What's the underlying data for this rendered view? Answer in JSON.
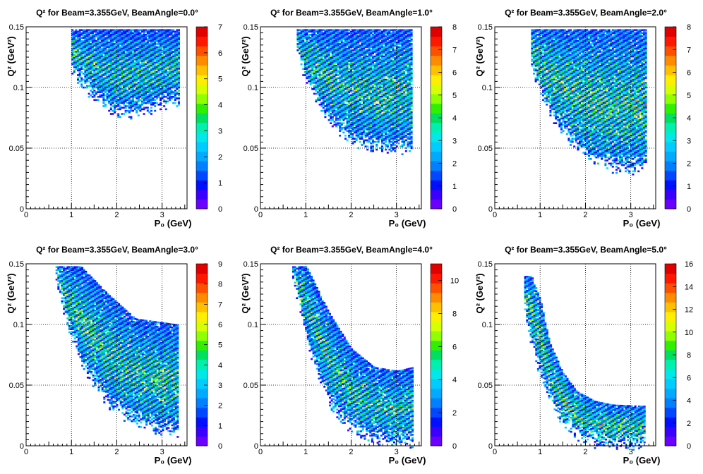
{
  "chart_data": [
    {
      "type": "heatmap",
      "title": "Q² for Beam=3.355GeV, BeamAngle=0.0°",
      "xlabel": "P₀ (GeV)",
      "ylabel": "Q² (GeV²)",
      "xlim": [
        0,
        3.55
      ],
      "ylim": [
        0,
        0.15
      ],
      "x_ticks": [
        "0",
        "1",
        "2",
        "3"
      ],
      "y_ticks": [
        "0",
        "0.05",
        "0.1",
        "0.15"
      ],
      "z_range": [
        0,
        7
      ],
      "z_ticks": [
        "0",
        "1",
        "2",
        "3",
        "4",
        "5",
        "6",
        "7"
      ],
      "grid": true,
      "colorbar": "right",
      "region": {
        "x_min": 1.0,
        "x_max": 3.35,
        "y_max": 0.148,
        "lower_edge_x": [
          1.0,
          1.3,
          1.6,
          2.0,
          2.4,
          2.8,
          3.35
        ],
        "lower_edge_y": [
          0.115,
          0.1,
          0.09,
          0.078,
          0.08,
          0.085,
          0.09
        ],
        "peak_z": 5.5
      }
    },
    {
      "type": "heatmap",
      "title": "Q² for Beam=3.355GeV, BeamAngle=1.0°",
      "xlabel": "P₀ (GeV)",
      "ylabel": "Q² (GeV²)",
      "xlim": [
        0,
        3.55
      ],
      "ylim": [
        0,
        0.15
      ],
      "x_ticks": [
        "0",
        "1",
        "2",
        "3"
      ],
      "y_ticks": [
        "0",
        "0.05",
        "0.1",
        "0.15"
      ],
      "z_range": [
        0,
        8
      ],
      "z_ticks": [
        "0",
        "1",
        "2",
        "3",
        "4",
        "5",
        "6",
        "7",
        "8"
      ],
      "grid": true,
      "colorbar": "right",
      "region": {
        "x_min": 0.8,
        "x_max": 3.35,
        "y_max": 0.148,
        "lower_edge_x": [
          0.8,
          1.0,
          1.3,
          1.6,
          2.0,
          2.4,
          2.8,
          3.35
        ],
        "lower_edge_y": [
          0.13,
          0.105,
          0.085,
          0.07,
          0.058,
          0.052,
          0.05,
          0.052
        ],
        "peak_z": 6.5
      }
    },
    {
      "type": "heatmap",
      "title": "Q² for Beam=3.355GeV, BeamAngle=2.0°",
      "xlabel": "P₀ (GeV)",
      "ylabel": "Q² (GeV²)",
      "xlim": [
        0,
        3.55
      ],
      "ylim": [
        0,
        0.15
      ],
      "x_ticks": [
        "0",
        "1",
        "2",
        "3"
      ],
      "y_ticks": [
        "0",
        "0.05",
        "0.1",
        "0.15"
      ],
      "z_range": [
        0,
        8
      ],
      "z_ticks": [
        "0",
        "1",
        "2",
        "3",
        "4",
        "5",
        "6",
        "7",
        "8"
      ],
      "grid": true,
      "colorbar": "right",
      "region": {
        "x_min": 0.8,
        "x_max": 3.35,
        "y_max": 0.148,
        "lower_edge_x": [
          0.8,
          1.0,
          1.3,
          1.6,
          2.0,
          2.4,
          2.8,
          3.35
        ],
        "lower_edge_y": [
          0.12,
          0.095,
          0.075,
          0.06,
          0.045,
          0.037,
          0.033,
          0.035
        ],
        "peak_z": 7.0
      }
    },
    {
      "type": "heatmap",
      "title": "Q² for Beam=3.355GeV, BeamAngle=3.0°",
      "xlabel": "P₀ (GeV)",
      "ylabel": "Q² (GeV²)",
      "xlim": [
        0,
        3.55
      ],
      "ylim": [
        0,
        0.15
      ],
      "x_ticks": [
        "0",
        "1",
        "2",
        "3"
      ],
      "y_ticks": [
        "0",
        "0.05",
        "0.1",
        "0.15"
      ],
      "z_range": [
        0,
        9
      ],
      "z_ticks": [
        "0",
        "1",
        "2",
        "3",
        "4",
        "5",
        "6",
        "7",
        "8",
        "9"
      ],
      "grid": true,
      "colorbar": "right",
      "region": {
        "x_min": 0.65,
        "x_max": 3.35,
        "y_max": 0.148,
        "lower_edge_x": [
          0.65,
          0.9,
          1.2,
          1.5,
          1.8,
          2.2,
          2.6,
          3.0,
          3.35
        ],
        "lower_edge_y": [
          0.14,
          0.1,
          0.07,
          0.05,
          0.035,
          0.025,
          0.018,
          0.013,
          0.012
        ],
        "upper_edge_x": [
          0.65,
          1.2,
          1.8,
          2.4,
          3.35
        ],
        "upper_edge_y": [
          0.148,
          0.148,
          0.125,
          0.105,
          0.1
        ],
        "peak_z": 7.5
      }
    },
    {
      "type": "heatmap",
      "title": "Q² for Beam=3.355GeV, BeamAngle=4.0°",
      "xlabel": "P₀ (GeV)",
      "ylabel": "Q² (GeV²)",
      "xlim": [
        0,
        3.55
      ],
      "ylim": [
        0,
        0.15
      ],
      "x_ticks": [
        "0",
        "1",
        "2",
        "3"
      ],
      "y_ticks": [
        "0",
        "0.05",
        "0.1",
        "0.15"
      ],
      "z_range": [
        0,
        11
      ],
      "z_ticks": [
        "0",
        "2",
        "4",
        "6",
        "8",
        "10"
      ],
      "grid": true,
      "colorbar": "right",
      "region": {
        "x_min": 0.7,
        "x_max": 3.35,
        "y_max": 0.148,
        "lower_edge_x": [
          0.7,
          1.0,
          1.3,
          1.6,
          2.0,
          2.4,
          2.8,
          3.35
        ],
        "lower_edge_y": [
          0.14,
          0.09,
          0.055,
          0.03,
          0.015,
          0.008,
          0.004,
          0.003
        ],
        "upper_edge_x": [
          0.7,
          1.0,
          1.5,
          2.0,
          2.5,
          3.0,
          3.35
        ],
        "upper_edge_y": [
          0.148,
          0.148,
          0.11,
          0.08,
          0.065,
          0.062,
          0.065
        ],
        "peak_z": 9.0
      }
    },
    {
      "type": "heatmap",
      "title": "Q² for Beam=3.355GeV, BeamAngle=5.0°",
      "xlabel": "P₀ (GeV)",
      "ylabel": "Q² (GeV²)",
      "xlim": [
        0,
        3.55
      ],
      "ylim": [
        0,
        0.15
      ],
      "x_ticks": [
        "0",
        "1",
        "2",
        "3"
      ],
      "y_ticks": [
        "0",
        "0.05",
        "0.1",
        "0.15"
      ],
      "z_range": [
        0,
        16
      ],
      "z_ticks": [
        "0",
        "2",
        "4",
        "6",
        "8",
        "10",
        "12",
        "14",
        "16"
      ],
      "grid": true,
      "colorbar": "right",
      "region": {
        "x_min": 0.65,
        "x_max": 3.3,
        "y_max": 0.14,
        "lower_edge_x": [
          0.65,
          0.9,
          1.2,
          1.5,
          1.8,
          2.2,
          2.6,
          3.0,
          3.3
        ],
        "lower_edge_y": [
          0.11,
          0.07,
          0.04,
          0.02,
          0.01,
          0.004,
          0.002,
          0.002,
          0.002
        ],
        "upper_edge_x": [
          0.65,
          0.8,
          1.0,
          1.2,
          1.5,
          1.8,
          2.2,
          2.6,
          3.3
        ],
        "upper_edge_y": [
          0.14,
          0.14,
          0.12,
          0.085,
          0.06,
          0.045,
          0.037,
          0.034,
          0.033
        ],
        "peak_z": 14.0
      }
    }
  ]
}
